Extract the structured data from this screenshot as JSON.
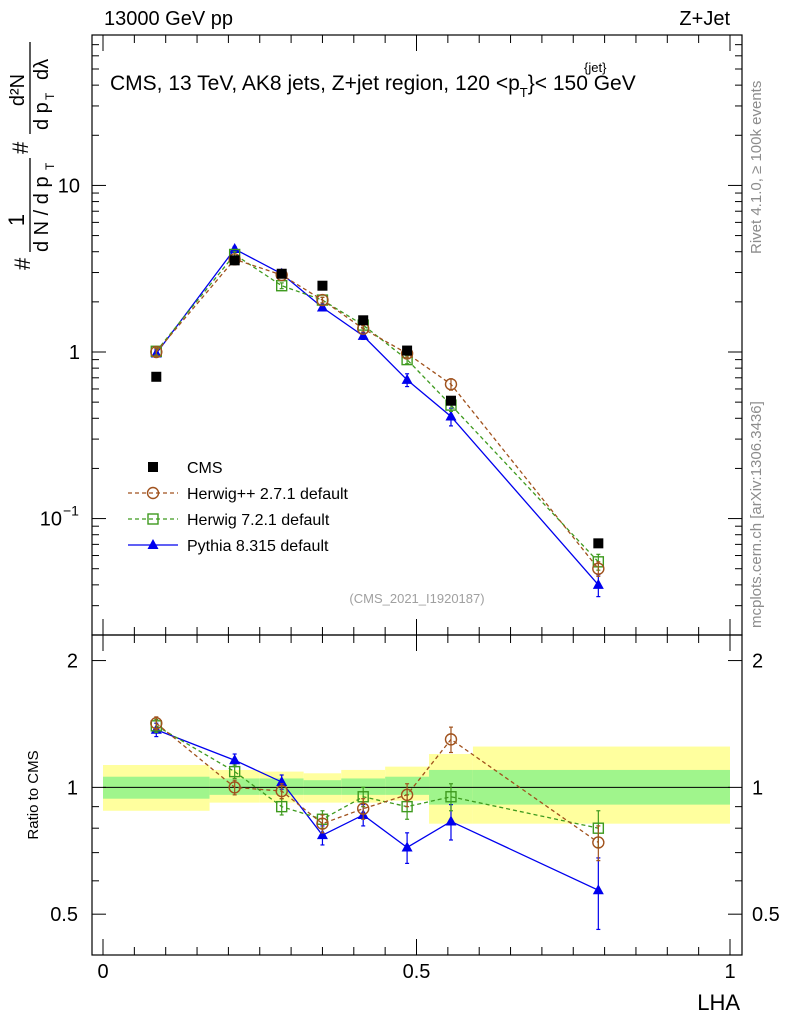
{
  "header": {
    "left": "13000 GeV pp",
    "right": "Z+Jet"
  },
  "side_labels": {
    "top": "Rivet 4.1.0, ≥ 100k events",
    "bottom": "mcplots.cern.ch [arXiv:1306.3436]"
  },
  "chart_data": [
    {
      "type": "line",
      "panel": "main",
      "title": "CMS, 13 TeV, AK8 jets, Z+jet region, 120 <p_T^{jet}< 150 GeV",
      "title_parts": {
        "prefix": "CMS, 13 TeV, AK8 jets, Z+jet region, 120 <",
        "p": "p",
        "sub": "T",
        "sup": "{jet}",
        "suffix": "}< 150 GeV"
      },
      "ylabel_parts": {
        "hash": "#",
        "one": "1",
        "dN": "d N / d p",
        "T": "T",
        "num": "d²N",
        "den": "d p",
        "dl": "dλ"
      },
      "yscale": "log",
      "ylim": [
        0.02,
        80
      ],
      "xlim": [
        0,
        1
      ],
      "yticks": [
        {
          "value": 0.1,
          "label": "10",
          "exp": "−1"
        },
        {
          "value": 1,
          "label": "1",
          "exp": ""
        },
        {
          "value": 10,
          "label": "10",
          "exp": ""
        }
      ],
      "watermark": "(CMS_2021_I1920187)",
      "legend_position": "bottom-left",
      "x": [
        0.085,
        0.21,
        0.285,
        0.35,
        0.415,
        0.485,
        0.555,
        0.79
      ],
      "series": [
        {
          "name": "CMS",
          "style": "square",
          "color": "#000000",
          "values": [
            0.71,
            3.55,
            2.95,
            2.5,
            1.55,
            1.02,
            0.51,
            0.071
          ],
          "errors": [
            0,
            0,
            0,
            0,
            0,
            0,
            0,
            0
          ]
        },
        {
          "name": "Herwig++ 2.7.1 default",
          "style": "circle-dashed",
          "color": "#a0521d",
          "values": [
            1.0,
            3.6,
            2.9,
            2.05,
            1.38,
            0.98,
            0.64,
            0.05
          ],
          "errors": [
            0.05,
            0.15,
            0.1,
            0.08,
            0.06,
            0.05,
            0.05,
            0.005
          ]
        },
        {
          "name": "Herwig 7.2.1 default",
          "style": "square-open-dashed",
          "color": "#3e9a1e",
          "values": [
            1.01,
            3.85,
            2.5,
            2.05,
            1.45,
            0.9,
            0.48,
            0.055
          ],
          "errors": [
            0.05,
            0.15,
            0.1,
            0.08,
            0.06,
            0.05,
            0.04,
            0.006
          ]
        },
        {
          "name": "Pythia 8.315 default",
          "style": "triangle-solid",
          "color": "#0000ee",
          "values": [
            0.98,
            4.15,
            2.95,
            1.85,
            1.25,
            0.68,
            0.41,
            0.04
          ],
          "errors": [
            0.05,
            0.15,
            0.1,
            0.08,
            0.06,
            0.06,
            0.05,
            0.006
          ]
        }
      ]
    },
    {
      "type": "line",
      "panel": "ratio",
      "xlabel": "LHA",
      "ylabel": "Ratio to CMS",
      "ylim": [
        0.4,
        2.3
      ],
      "yscale": "log",
      "xlim": [
        0,
        1
      ],
      "yticks": [
        {
          "value": 0.5,
          "label": "0.5"
        },
        {
          "value": 1,
          "label": "1"
        },
        {
          "value": 2,
          "label": "2"
        }
      ],
      "xticks": [
        {
          "value": 0,
          "label": "0"
        },
        {
          "value": 0.5,
          "label": "0.5"
        },
        {
          "value": 1,
          "label": "1"
        }
      ],
      "bands": {
        "edges": [
          0,
          0.17,
          0.25,
          0.32,
          0.38,
          0.45,
          0.52,
          0.59,
          1.0
        ],
        "yellow": [
          [
            0.88,
            1.13
          ],
          [
            0.92,
            1.1
          ],
          [
            0.92,
            1.09
          ],
          [
            0.92,
            1.08
          ],
          [
            0.92,
            1.1
          ],
          [
            0.93,
            1.12
          ],
          [
            0.82,
            1.2
          ],
          [
            0.82,
            1.25
          ]
        ],
        "green": [
          [
            0.94,
            1.06
          ],
          [
            0.96,
            1.05
          ],
          [
            0.96,
            1.05
          ],
          [
            0.96,
            1.04
          ],
          [
            0.96,
            1.05
          ],
          [
            0.96,
            1.06
          ],
          [
            0.91,
            1.1
          ],
          [
            0.91,
            1.1
          ]
        ]
      },
      "x": [
        0.085,
        0.21,
        0.285,
        0.35,
        0.415,
        0.485,
        0.555,
        0.79
      ],
      "series": [
        {
          "name": "Herwig++ 2.7.1 default",
          "style": "circle-dashed",
          "color": "#a0521d",
          "values": [
            1.42,
            1.0,
            0.98,
            0.82,
            0.89,
            0.96,
            1.3,
            0.74
          ],
          "errors": [
            0.05,
            0.04,
            0.04,
            0.04,
            0.05,
            0.06,
            0.09,
            0.07
          ]
        },
        {
          "name": "Herwig 7.2.1 default",
          "style": "square-open-dashed",
          "color": "#3e9a1e",
          "values": [
            1.4,
            1.09,
            0.9,
            0.84,
            0.95,
            0.9,
            0.95,
            0.8
          ],
          "errors": [
            0.05,
            0.04,
            0.04,
            0.04,
            0.05,
            0.06,
            0.07,
            0.08
          ]
        },
        {
          "name": "Pythia 8.315 default",
          "style": "triangle-solid",
          "color": "#0000ee",
          "values": [
            1.37,
            1.16,
            1.03,
            0.77,
            0.86,
            0.72,
            0.83,
            0.57
          ],
          "errors": [
            0.05,
            0.04,
            0.04,
            0.04,
            0.05,
            0.06,
            0.08,
            0.11
          ]
        }
      ]
    }
  ]
}
